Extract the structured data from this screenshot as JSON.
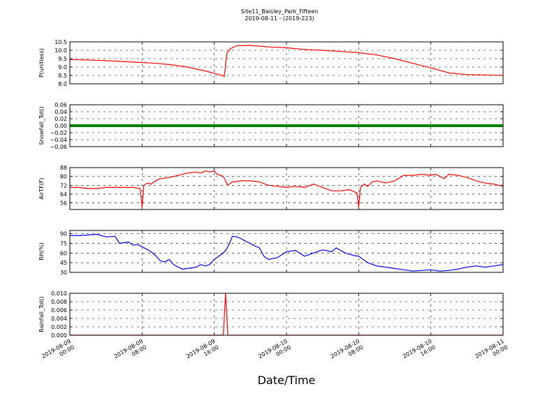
{
  "chart_data": {
    "type": "line",
    "title": "Site11_Baisley_Park_Fifteen",
    "subtitle": "2019-08-11 - (2019-223)",
    "xlabel": "Date/Time",
    "x_ticks": [
      {
        "line1": "2019-08-09",
        "line2": "00:00",
        "t": 0
      },
      {
        "line1": "2019-08-09",
        "line2": "08:00",
        "t": 8
      },
      {
        "line1": "2019-08-09",
        "line2": "16:00",
        "t": 16
      },
      {
        "line1": "2019-08-10",
        "line2": "00:00",
        "t": 24
      },
      {
        "line1": "2019-08-10",
        "line2": "08:00",
        "t": 32
      },
      {
        "line1": "2019-08-10",
        "line2": "16:00",
        "t": 40
      },
      {
        "line1": "2019-08-11",
        "line2": "00:00",
        "t": 48
      }
    ],
    "xlim": [
      0,
      48
    ],
    "panels": [
      {
        "ylabel": "P(unitless)",
        "color": "#ff0000",
        "ylim": [
          8.0,
          10.5
        ],
        "yticks": [
          "10.5",
          "10.0",
          "9.5",
          "9.0",
          "8.5",
          "8.0"
        ],
        "ytick_values": [
          10.5,
          10.0,
          9.5,
          9.0,
          8.5,
          8.0
        ],
        "x": [
          0,
          2,
          4,
          6,
          8,
          9,
          10,
          11,
          12,
          13,
          14,
          15,
          16,
          17,
          17.1,
          17.4,
          17.8,
          18.5,
          20,
          22,
          24,
          26,
          28,
          30,
          32,
          34,
          36,
          38,
          40,
          42,
          44,
          46,
          48
        ],
        "values": [
          9.45,
          9.42,
          9.38,
          9.33,
          9.27,
          9.24,
          9.2,
          9.15,
          9.08,
          9.0,
          8.88,
          8.77,
          8.62,
          8.48,
          8.43,
          9.85,
          10.1,
          10.27,
          10.29,
          10.2,
          10.15,
          10.05,
          10.0,
          9.93,
          9.86,
          9.72,
          9.5,
          9.22,
          8.95,
          8.65,
          8.55,
          8.53,
          8.51
        ]
      },
      {
        "ylabel": "Snowfall_Tot()",
        "color": "#008000",
        "ylim": [
          -0.06,
          0.06
        ],
        "yticks": [
          "0.06",
          "0.04",
          "0.02",
          "0.00",
          "−0.02",
          "−0.04",
          "−0.06"
        ],
        "ytick_values": [
          0.06,
          0.04,
          0.02,
          0.0,
          -0.02,
          -0.04,
          -0.06
        ],
        "x": [
          0,
          48
        ],
        "values": [
          0,
          0
        ],
        "line_style": "thick"
      },
      {
        "ylabel": "AirTF(F)",
        "color": "#ff0000",
        "ylim": [
          50,
          88
        ],
        "yticks": [
          "88",
          "80",
          "72",
          "64",
          "56"
        ],
        "ytick_values": [
          88,
          80,
          72,
          64,
          56
        ],
        "x": [
          0,
          1,
          2,
          3,
          4,
          5,
          6,
          7,
          7.8,
          8.0,
          8.2,
          8.6,
          9.0,
          9.5,
          10,
          11,
          12,
          13,
          14,
          14.5,
          15,
          15.5,
          16,
          16.3,
          16.7,
          17,
          17.5,
          18,
          19,
          20,
          21,
          22,
          23,
          24,
          25,
          26,
          27,
          28,
          29,
          30,
          31,
          31.8,
          32.0,
          32.2,
          32.6,
          33,
          33.5,
          34,
          35,
          36,
          37,
          38,
          39,
          40,
          40.5,
          41,
          41.5,
          42,
          43,
          44,
          45,
          46,
          47,
          48
        ],
        "values": [
          70,
          70,
          69,
          69,
          70,
          70,
          70,
          70,
          69,
          52,
          72,
          74,
          73,
          76,
          78,
          79,
          81,
          83,
          84,
          83,
          85,
          84,
          85,
          82,
          81,
          80,
          72,
          75,
          76,
          76,
          75,
          72,
          71,
          70,
          71,
          70,
          73,
          70,
          67,
          67,
          68,
          65,
          52,
          70,
          73,
          71,
          75,
          76,
          74,
          76,
          81,
          81,
          82,
          81,
          82,
          80,
          78,
          82,
          81,
          79,
          76,
          74,
          73,
          71
        ]
      },
      {
        "ylabel": "RH(%)",
        "color": "#0000ff",
        "ylim": [
          30,
          95
        ],
        "yticks": [
          "90",
          "75",
          "60",
          "45",
          "30"
        ],
        "ytick_values": [
          90,
          75,
          60,
          45,
          30
        ],
        "x": [
          0,
          1,
          2,
          3,
          4,
          5,
          5.5,
          6,
          6.5,
          7,
          7.5,
          8,
          8.5,
          9,
          9.5,
          10,
          10.5,
          11,
          11.5,
          12,
          12.5,
          13,
          13.5,
          14,
          14.5,
          15,
          15.5,
          16,
          16.5,
          17,
          17.3,
          17.7,
          18,
          18.5,
          19,
          19.5,
          20,
          20.5,
          21,
          21.5,
          22,
          23,
          24,
          25,
          26,
          27,
          28,
          29,
          29.5,
          30,
          30.5,
          31,
          31.5,
          32,
          33,
          34,
          35,
          36,
          37,
          38,
          39,
          40,
          41,
          42,
          43,
          44,
          45,
          46,
          47,
          48
        ],
        "values": [
          87,
          87,
          88,
          89,
          85,
          86,
          75,
          76,
          77,
          72,
          73,
          70,
          66,
          62,
          56,
          48,
          46,
          50,
          42,
          38,
          35,
          36,
          37,
          38,
          42,
          40,
          42,
          50,
          55,
          60,
          65,
          75,
          86,
          85,
          82,
          78,
          75,
          71,
          68,
          55,
          50,
          53,
          62,
          64,
          55,
          60,
          65,
          62,
          68,
          64,
          60,
          58,
          56,
          55,
          45,
          40,
          38,
          36,
          34,
          32,
          33,
          34,
          32,
          33,
          35,
          38,
          40,
          38,
          40,
          42
        ]
      },
      {
        "ylabel": "Rainfall_Tot()",
        "color": "#ff0000",
        "ylim": [
          0.0,
          0.01
        ],
        "yticks": [
          "0.010",
          "0.008",
          "0.006",
          "0.004",
          "0.002",
          "0.000"
        ],
        "ytick_values": [
          0.01,
          0.008,
          0.006,
          0.004,
          0.002,
          0.0
        ],
        "x": [
          0,
          16.75,
          17.0,
          17.25,
          17.5,
          48
        ],
        "values": [
          0,
          0,
          0,
          0.01,
          0,
          0
        ]
      }
    ],
    "grid": true
  }
}
